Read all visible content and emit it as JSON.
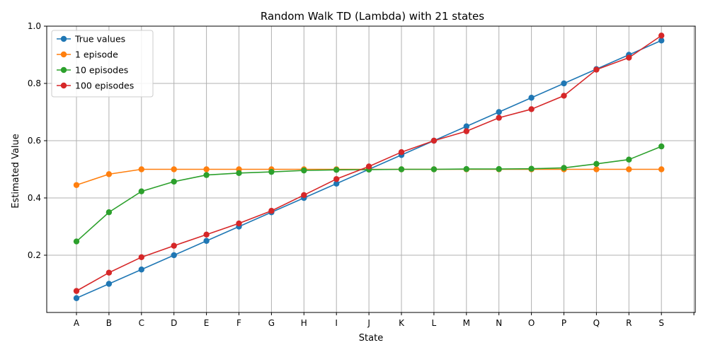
{
  "chart_data": {
    "type": "line",
    "title": "Random Walk TD (Lambda) with 21 states",
    "xlabel": "State",
    "ylabel": "Estimated Value",
    "categories": [
      "A",
      "B",
      "C",
      "D",
      "E",
      "F",
      "G",
      "H",
      "I",
      "J",
      "K",
      "L",
      "M",
      "N",
      "O",
      "P",
      "Q",
      "R",
      "S"
    ],
    "extra_tick_label": "",
    "ylim": [
      0.0,
      1.0
    ],
    "yticks": [
      "0.2",
      "0.4",
      "0.6",
      "0.8",
      "1.0"
    ],
    "grid": true,
    "legend_position": "upper-left",
    "series": [
      {
        "name": "True values",
        "color": "#1f77b4",
        "values": [
          0.05,
          0.1,
          0.15,
          0.2,
          0.25,
          0.3,
          0.35,
          0.4,
          0.45,
          0.5,
          0.55,
          0.6,
          0.65,
          0.7,
          0.75,
          0.8,
          0.85,
          0.9,
          0.95
        ]
      },
      {
        "name": "1 episode",
        "color": "#ff7f0e",
        "values": [
          0.445,
          0.483,
          0.5,
          0.5,
          0.5,
          0.5,
          0.5,
          0.5,
          0.5,
          0.5,
          0.5,
          0.5,
          0.5,
          0.5,
          0.5,
          0.5,
          0.5,
          0.5,
          0.5
        ]
      },
      {
        "name": "10 episodes",
        "color": "#2ca02c",
        "values": [
          0.248,
          0.35,
          0.423,
          0.457,
          0.48,
          0.487,
          0.491,
          0.496,
          0.498,
          0.499,
          0.5,
          0.5,
          0.501,
          0.501,
          0.502,
          0.505,
          0.519,
          0.534,
          0.58
        ]
      },
      {
        "name": "100 episodes",
        "color": "#d62728",
        "values": [
          0.075,
          0.139,
          0.193,
          0.233,
          0.272,
          0.311,
          0.355,
          0.41,
          0.466,
          0.51,
          0.56,
          0.6,
          0.633,
          0.68,
          0.71,
          0.757,
          0.848,
          0.89,
          0.967
        ]
      }
    ]
  }
}
